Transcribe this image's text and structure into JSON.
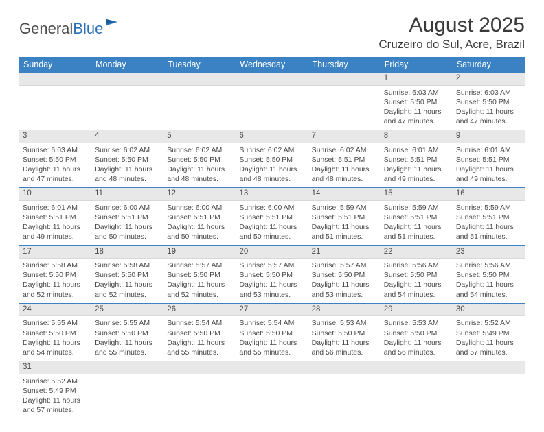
{
  "logo": {
    "text1": "General",
    "text2": "Blue"
  },
  "title": "August 2025",
  "location": "Cruzeiro do Sul, Acre, Brazil",
  "days": [
    "Sunday",
    "Monday",
    "Tuesday",
    "Wednesday",
    "Thursday",
    "Friday",
    "Saturday"
  ],
  "colors": {
    "header_bg": "#3a82c4",
    "header_fg": "#ffffff",
    "daynum_bg": "#e8e8e8",
    "border": "#3a82c4",
    "text": "#4a4a4a",
    "logo_blue": "#2a71b8"
  },
  "weeks": [
    [
      null,
      null,
      null,
      null,
      null,
      {
        "n": "1",
        "sr": "Sunrise: 6:03 AM",
        "ss": "Sunset: 5:50 PM",
        "dl": "Daylight: 11 hours and 47 minutes."
      },
      {
        "n": "2",
        "sr": "Sunrise: 6:03 AM",
        "ss": "Sunset: 5:50 PM",
        "dl": "Daylight: 11 hours and 47 minutes."
      }
    ],
    [
      {
        "n": "3",
        "sr": "Sunrise: 6:03 AM",
        "ss": "Sunset: 5:50 PM",
        "dl": "Daylight: 11 hours and 47 minutes."
      },
      {
        "n": "4",
        "sr": "Sunrise: 6:02 AM",
        "ss": "Sunset: 5:50 PM",
        "dl": "Daylight: 11 hours and 48 minutes."
      },
      {
        "n": "5",
        "sr": "Sunrise: 6:02 AM",
        "ss": "Sunset: 5:50 PM",
        "dl": "Daylight: 11 hours and 48 minutes."
      },
      {
        "n": "6",
        "sr": "Sunrise: 6:02 AM",
        "ss": "Sunset: 5:50 PM",
        "dl": "Daylight: 11 hours and 48 minutes."
      },
      {
        "n": "7",
        "sr": "Sunrise: 6:02 AM",
        "ss": "Sunset: 5:51 PM",
        "dl": "Daylight: 11 hours and 48 minutes."
      },
      {
        "n": "8",
        "sr": "Sunrise: 6:01 AM",
        "ss": "Sunset: 5:51 PM",
        "dl": "Daylight: 11 hours and 49 minutes."
      },
      {
        "n": "9",
        "sr": "Sunrise: 6:01 AM",
        "ss": "Sunset: 5:51 PM",
        "dl": "Daylight: 11 hours and 49 minutes."
      }
    ],
    [
      {
        "n": "10",
        "sr": "Sunrise: 6:01 AM",
        "ss": "Sunset: 5:51 PM",
        "dl": "Daylight: 11 hours and 49 minutes."
      },
      {
        "n": "11",
        "sr": "Sunrise: 6:00 AM",
        "ss": "Sunset: 5:51 PM",
        "dl": "Daylight: 11 hours and 50 minutes."
      },
      {
        "n": "12",
        "sr": "Sunrise: 6:00 AM",
        "ss": "Sunset: 5:51 PM",
        "dl": "Daylight: 11 hours and 50 minutes."
      },
      {
        "n": "13",
        "sr": "Sunrise: 6:00 AM",
        "ss": "Sunset: 5:51 PM",
        "dl": "Daylight: 11 hours and 50 minutes."
      },
      {
        "n": "14",
        "sr": "Sunrise: 5:59 AM",
        "ss": "Sunset: 5:51 PM",
        "dl": "Daylight: 11 hours and 51 minutes."
      },
      {
        "n": "15",
        "sr": "Sunrise: 5:59 AM",
        "ss": "Sunset: 5:51 PM",
        "dl": "Daylight: 11 hours and 51 minutes."
      },
      {
        "n": "16",
        "sr": "Sunrise: 5:59 AM",
        "ss": "Sunset: 5:51 PM",
        "dl": "Daylight: 11 hours and 51 minutes."
      }
    ],
    [
      {
        "n": "17",
        "sr": "Sunrise: 5:58 AM",
        "ss": "Sunset: 5:50 PM",
        "dl": "Daylight: 11 hours and 52 minutes."
      },
      {
        "n": "18",
        "sr": "Sunrise: 5:58 AM",
        "ss": "Sunset: 5:50 PM",
        "dl": "Daylight: 11 hours and 52 minutes."
      },
      {
        "n": "19",
        "sr": "Sunrise: 5:57 AM",
        "ss": "Sunset: 5:50 PM",
        "dl": "Daylight: 11 hours and 52 minutes."
      },
      {
        "n": "20",
        "sr": "Sunrise: 5:57 AM",
        "ss": "Sunset: 5:50 PM",
        "dl": "Daylight: 11 hours and 53 minutes."
      },
      {
        "n": "21",
        "sr": "Sunrise: 5:57 AM",
        "ss": "Sunset: 5:50 PM",
        "dl": "Daylight: 11 hours and 53 minutes."
      },
      {
        "n": "22",
        "sr": "Sunrise: 5:56 AM",
        "ss": "Sunset: 5:50 PM",
        "dl": "Daylight: 11 hours and 54 minutes."
      },
      {
        "n": "23",
        "sr": "Sunrise: 5:56 AM",
        "ss": "Sunset: 5:50 PM",
        "dl": "Daylight: 11 hours and 54 minutes."
      }
    ],
    [
      {
        "n": "24",
        "sr": "Sunrise: 5:55 AM",
        "ss": "Sunset: 5:50 PM",
        "dl": "Daylight: 11 hours and 54 minutes."
      },
      {
        "n": "25",
        "sr": "Sunrise: 5:55 AM",
        "ss": "Sunset: 5:50 PM",
        "dl": "Daylight: 11 hours and 55 minutes."
      },
      {
        "n": "26",
        "sr": "Sunrise: 5:54 AM",
        "ss": "Sunset: 5:50 PM",
        "dl": "Daylight: 11 hours and 55 minutes."
      },
      {
        "n": "27",
        "sr": "Sunrise: 5:54 AM",
        "ss": "Sunset: 5:50 PM",
        "dl": "Daylight: 11 hours and 55 minutes."
      },
      {
        "n": "28",
        "sr": "Sunrise: 5:53 AM",
        "ss": "Sunset: 5:50 PM",
        "dl": "Daylight: 11 hours and 56 minutes."
      },
      {
        "n": "29",
        "sr": "Sunrise: 5:53 AM",
        "ss": "Sunset: 5:50 PM",
        "dl": "Daylight: 11 hours and 56 minutes."
      },
      {
        "n": "30",
        "sr": "Sunrise: 5:52 AM",
        "ss": "Sunset: 5:49 PM",
        "dl": "Daylight: 11 hours and 57 minutes."
      }
    ],
    [
      {
        "n": "31",
        "sr": "Sunrise: 5:52 AM",
        "ss": "Sunset: 5:49 PM",
        "dl": "Daylight: 11 hours and 57 minutes."
      },
      null,
      null,
      null,
      null,
      null,
      null
    ]
  ]
}
